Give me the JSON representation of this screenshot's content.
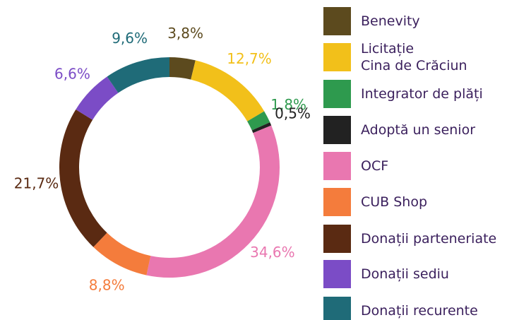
{
  "chart_data": {
    "type": "donut",
    "categories": [
      "Benevity",
      "Licitație\nCina de Crăciun",
      "Integrator de plăți",
      "Adoptă un senior",
      "OCF",
      "CUB Shop",
      "Donații parteneriate",
      "Donații sediu",
      "Donații recurente"
    ],
    "values": [
      3.8,
      12.7,
      1.8,
      0.5,
      34.6,
      8.8,
      21.7,
      6.6,
      9.6
    ],
    "value_labels": [
      "3,8%",
      "12,7%",
      "1,8%",
      "0,5%",
      "34,6%",
      "8,8%",
      "21,7%",
      "6,6%",
      "9,6%"
    ],
    "colors": [
      "#5c4a1e",
      "#f2c01a",
      "#2e9a4e",
      "#222222",
      "#e977b0",
      "#f47c3c",
      "#5a2a12",
      "#7b4cc6",
      "#1f6b78"
    ],
    "legend": "right"
  }
}
